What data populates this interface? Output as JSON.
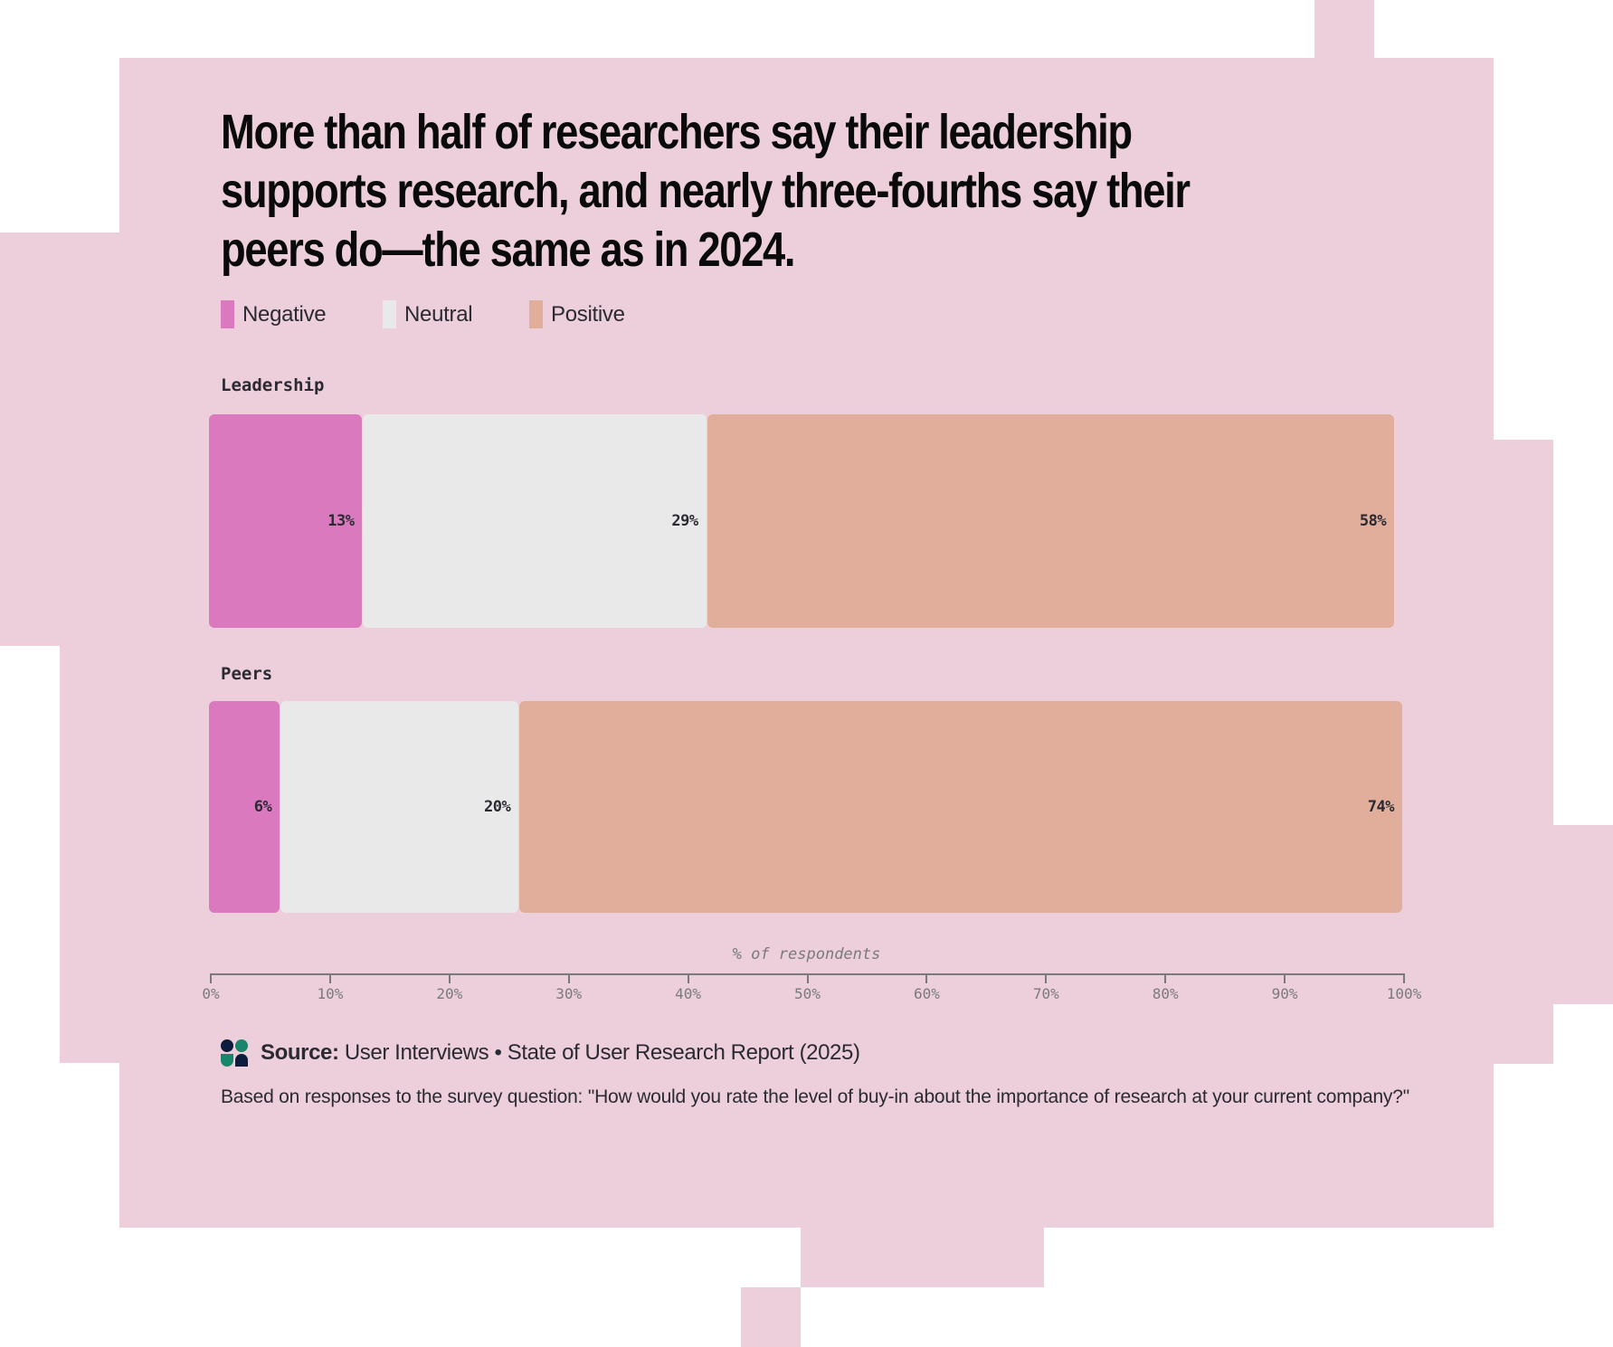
{
  "title_lines": [
    "More than half of researchers say their leadership",
    "supports research, and nearly three-fourths say their",
    "peers do—the same as in 2024."
  ],
  "legend": [
    {
      "label": "Negative",
      "color": "#db79be"
    },
    {
      "label": "Neutral",
      "color": "#e9e9e9"
    },
    {
      "label": "Positive",
      "color": "#e2ae9c"
    }
  ],
  "colors": {
    "background": "#eccfda",
    "negative": "#db79be",
    "neutral": "#e9e9e9",
    "positive": "#e2ae9c",
    "text": "#2b2a33",
    "axis": "#7a7a7e"
  },
  "chart_data": {
    "type": "bar",
    "orientation": "horizontal",
    "stacked": true,
    "title": "More than half of researchers say their leadership supports research, and nearly three-fourths say their peers do—the same as in 2024.",
    "categories": [
      "Leadership",
      "Peers"
    ],
    "series": [
      {
        "name": "Negative",
        "values": [
          13,
          6
        ],
        "labels": [
          "13%",
          "6%"
        ]
      },
      {
        "name": "Neutral",
        "values": [
          29,
          20
        ],
        "labels": [
          "29%",
          "20%"
        ]
      },
      {
        "name": "Positive",
        "values": [
          58,
          74
        ],
        "labels": [
          "58%",
          "74%"
        ]
      }
    ],
    "xlabel": "% of respondents",
    "ylabel": "",
    "xlim": [
      0,
      100
    ],
    "x_ticks": [
      "0%",
      "10%",
      "20%",
      "30%",
      "40%",
      "50%",
      "60%",
      "70%",
      "80%",
      "90%",
      "100%"
    ],
    "grid": false,
    "legend_position": "top-left"
  },
  "source": {
    "label": "Source:",
    "text": "User Interviews • State of User Research Report (2025)"
  },
  "note": "Based on responses to the survey question: \"How would you rate the level of buy-in about the importance of research at your current company?\""
}
